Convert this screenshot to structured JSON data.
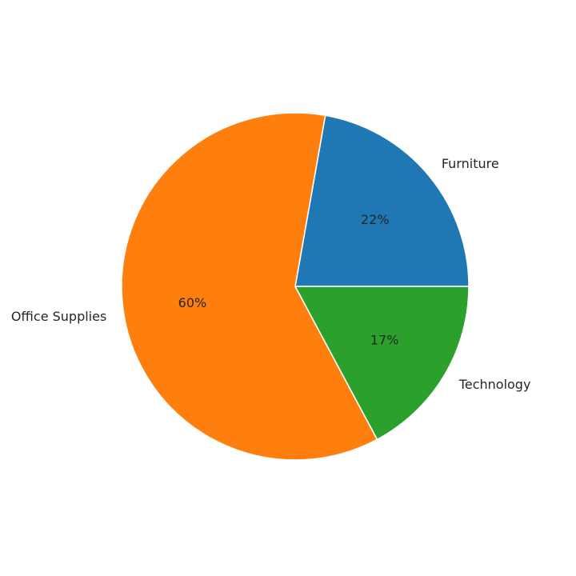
{
  "chart_data": {
    "type": "pie",
    "title": "",
    "categories": [
      "Furniture",
      "Office Supplies",
      "Technology"
    ],
    "values": [
      22,
      60,
      17
    ],
    "value_labels": [
      "22%",
      "60%",
      "17%"
    ],
    "start_angle_deg": 0,
    "direction": "counterclockwise",
    "colors": [
      "#1f77b4",
      "#ff7f0e",
      "#2ca02c"
    ],
    "edge_color": "#ffffff",
    "legend": "none"
  }
}
